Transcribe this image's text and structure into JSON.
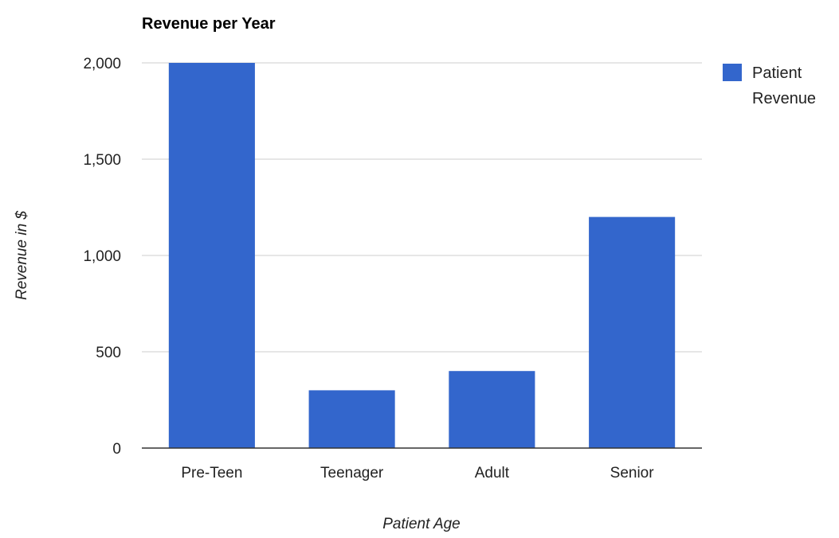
{
  "chart_data": {
    "type": "bar",
    "title": "Revenue per Year",
    "xlabel": "Patient Age",
    "ylabel": "Revenue in $",
    "categories": [
      "Pre-Teen",
      "Teenager",
      "Adult",
      "Senior"
    ],
    "series": [
      {
        "name": "Patient Revenue",
        "values": [
          2000,
          300,
          400,
          1200
        ],
        "color": "#3366cc"
      }
    ],
    "ylim": [
      0,
      2000
    ],
    "yticks": [
      0,
      500,
      1000,
      1500,
      2000
    ],
    "ytick_labels": [
      "0",
      "500",
      "1,000",
      "1,500",
      "2,000"
    ],
    "grid": true,
    "legend_position": "right",
    "legend_lines": [
      "Patient",
      "Revenue"
    ],
    "gridline_color": "#cccccc",
    "axis_color": "#333333"
  }
}
